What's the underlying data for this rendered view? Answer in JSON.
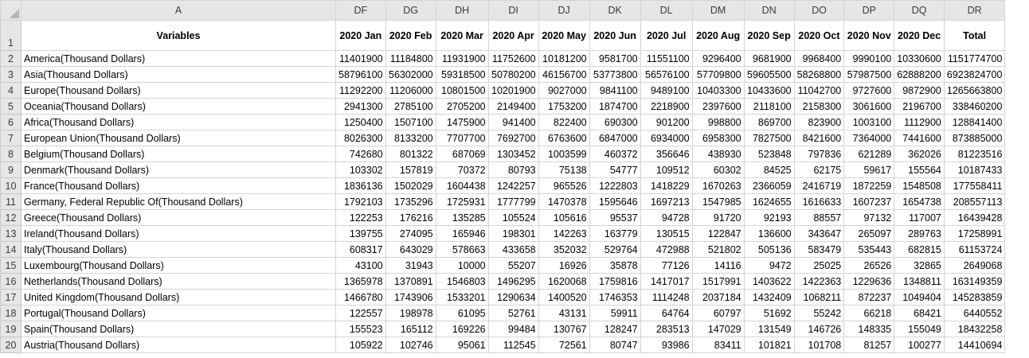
{
  "sheet": {
    "column_letters": [
      "A",
      "DF",
      "DG",
      "DH",
      "DI",
      "DJ",
      "DK",
      "DL",
      "DM",
      "DN",
      "DO",
      "DP",
      "DQ",
      "DR"
    ],
    "header": [
      "Variables",
      "2020 Jan",
      "2020 Feb",
      "2020 Mar",
      "2020 Apr",
      "2020 May",
      "2020 Jun",
      "2020 Jul",
      "2020 Aug",
      "2020 Sep",
      "2020 Oct",
      "2020 Nov",
      "2020 Dec",
      "Total"
    ],
    "rows": [
      {
        "num": "2",
        "cells": [
          "America(Thousand Dollars)",
          "11401900",
          "11184800",
          "11931900",
          "11752600",
          "10181200",
          "9581700",
          "11551100",
          "9296400",
          "9681900",
          "9968400",
          "9990100",
          "10330600",
          "1151774700"
        ]
      },
      {
        "num": "3",
        "cells": [
          "Asia(Thousand Dollars)",
          "58796100",
          "56302000",
          "59318500",
          "50780200",
          "46156700",
          "53773800",
          "56576100",
          "57709800",
          "59605500",
          "58268800",
          "57987500",
          "62888200",
          "6923824700"
        ]
      },
      {
        "num": "4",
        "cells": [
          "Europe(Thousand Dollars)",
          "11292200",
          "11206000",
          "10801500",
          "10201900",
          "9027000",
          "9841100",
          "9489100",
          "10403300",
          "10433600",
          "11042700",
          "9727600",
          "9872900",
          "1265663800"
        ]
      },
      {
        "num": "5",
        "cells": [
          "Oceania(Thousand Dollars)",
          "2941300",
          "2785100",
          "2705200",
          "2149400",
          "1753200",
          "1874700",
          "2218900",
          "2397600",
          "2118100",
          "2158300",
          "3061600",
          "2196700",
          "338460200"
        ]
      },
      {
        "num": "6",
        "cells": [
          "Africa(Thousand Dollars)",
          "1250400",
          "1507100",
          "1475900",
          "941400",
          "822400",
          "690300",
          "901200",
          "998800",
          "869700",
          "823900",
          "1003100",
          "1112900",
          "128841400"
        ]
      },
      {
        "num": "7",
        "cells": [
          "European Union(Thousand Dollars)",
          "8026300",
          "8133200",
          "7707700",
          "7692700",
          "6763600",
          "6847000",
          "6934000",
          "6958300",
          "7827500",
          "8421600",
          "7364000",
          "7441600",
          "873885000"
        ]
      },
      {
        "num": "8",
        "cells": [
          "Belgium(Thousand Dollars)",
          "742680",
          "801322",
          "687069",
          "1303452",
          "1003599",
          "460372",
          "356646",
          "438930",
          "523848",
          "797836",
          "621289",
          "362026",
          "81223516"
        ]
      },
      {
        "num": "9",
        "cells": [
          "Denmark(Thousand Dollars)",
          "103302",
          "157819",
          "70372",
          "80793",
          "75138",
          "54777",
          "109512",
          "60302",
          "84525",
          "62175",
          "59617",
          "155564",
          "10187433"
        ]
      },
      {
        "num": "10",
        "cells": [
          "France(Thousand Dollars)",
          "1836136",
          "1502029",
          "1604438",
          "1242257",
          "965526",
          "1222803",
          "1418229",
          "1670263",
          "2366059",
          "2416719",
          "1872259",
          "1548508",
          "177558411"
        ]
      },
      {
        "num": "11",
        "cells": [
          "Germany, Federal Republic Of(Thousand Dollars)",
          "1792103",
          "1735296",
          "1725931",
          "1777799",
          "1470378",
          "1595646",
          "1697213",
          "1547985",
          "1624655",
          "1616633",
          "1607237",
          "1654738",
          "208557113"
        ]
      },
      {
        "num": "12",
        "cells": [
          "Greece(Thousand Dollars)",
          "122253",
          "176216",
          "135285",
          "105524",
          "105616",
          "95537",
          "94728",
          "91720",
          "92193",
          "88557",
          "97132",
          "117007",
          "16439428"
        ]
      },
      {
        "num": "13",
        "cells": [
          "Ireland(Thousand Dollars)",
          "139755",
          "274095",
          "165946",
          "198301",
          "142263",
          "163779",
          "130515",
          "122847",
          "136600",
          "343647",
          "265097",
          "289763",
          "17258991"
        ]
      },
      {
        "num": "14",
        "cells": [
          "Italy(Thousand Dollars)",
          "608317",
          "643029",
          "578663",
          "433658",
          "352032",
          "529764",
          "472988",
          "521802",
          "505136",
          "583479",
          "535443",
          "682815",
          "61153724"
        ]
      },
      {
        "num": "15",
        "cells": [
          "Luxembourg(Thousand Dollars)",
          "43100",
          "31943",
          "10000",
          "55207",
          "16926",
          "35878",
          "77126",
          "14116",
          "9472",
          "25025",
          "26526",
          "32865",
          "2649068"
        ]
      },
      {
        "num": "16",
        "cells": [
          "Netherlands(Thousand Dollars)",
          "1365978",
          "1370891",
          "1546803",
          "1496295",
          "1620068",
          "1759816",
          "1417017",
          "1517991",
          "1403622",
          "1422363",
          "1229636",
          "1348811",
          "163149359"
        ]
      },
      {
        "num": "17",
        "cells": [
          "United Kingdom(Thousand Dollars)",
          "1466780",
          "1743906",
          "1533201",
          "1290634",
          "1400520",
          "1746353",
          "1114248",
          "2037184",
          "1432409",
          "1068211",
          "872237",
          "1049404",
          "145283859"
        ]
      },
      {
        "num": "18",
        "cells": [
          "Portugal(Thousand Dollars)",
          "122557",
          "198978",
          "61095",
          "52761",
          "43131",
          "59911",
          "64764",
          "60797",
          "51692",
          "55242",
          "66218",
          "68421",
          "6440552"
        ]
      },
      {
        "num": "19",
        "cells": [
          "Spain(Thousand Dollars)",
          "155523",
          "165112",
          "169226",
          "99484",
          "130767",
          "128247",
          "283513",
          "147029",
          "131549",
          "146726",
          "148335",
          "155049",
          "18432258"
        ]
      },
      {
        "num": "20",
        "cells": [
          "Austria(Thousand Dollars)",
          "105922",
          "102746",
          "95061",
          "112545",
          "72561",
          "80747",
          "93986",
          "83411",
          "101821",
          "101708",
          "81257",
          "100277",
          "14410694"
        ]
      }
    ],
    "header_row_num": "1"
  }
}
